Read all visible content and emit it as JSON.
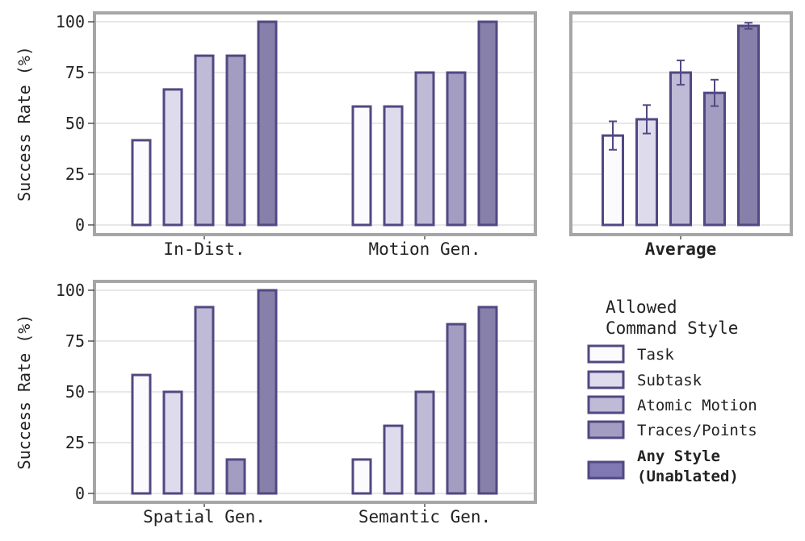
{
  "palette": {
    "stroke": "#524882",
    "fills": [
      "#fbfbfd",
      "#dedcec",
      "#bfbad6",
      "#a39dc1",
      "#8680aa"
    ],
    "legend_unablated_fill": "#7f78b2",
    "frame": "#a6a6a6",
    "grid": "#d2d2d2"
  },
  "chart_data": [
    {
      "type": "bar",
      "ylabel": "Success Rate (%)",
      "ylim": [
        0,
        100
      ],
      "yticks": [
        0,
        25,
        50,
        75,
        100
      ],
      "categories": [
        "In-Dist.",
        "Motion Gen."
      ],
      "series": [
        {
          "name": "Task",
          "values": [
            41.7,
            58.3
          ]
        },
        {
          "name": "Subtask",
          "values": [
            66.7,
            58.3
          ]
        },
        {
          "name": "Atomic Motion",
          "values": [
            83.3,
            75
          ]
        },
        {
          "name": "Traces/Points",
          "values": [
            83.3,
            75
          ]
        },
        {
          "name": "Any Style (Unablated)",
          "values": [
            100,
            100
          ]
        }
      ]
    },
    {
      "type": "bar",
      "ylim": [
        0,
        100
      ],
      "categories": [
        "Average"
      ],
      "series": [
        {
          "name": "Task",
          "values": [
            44
          ],
          "error": [
            7
          ]
        },
        {
          "name": "Subtask",
          "values": [
            52
          ],
          "error": [
            7
          ]
        },
        {
          "name": "Atomic Motion",
          "values": [
            75
          ],
          "error": [
            6
          ]
        },
        {
          "name": "Traces/Points",
          "values": [
            65
          ],
          "error": [
            6.5
          ]
        },
        {
          "name": "Any Style (Unablated)",
          "values": [
            98
          ],
          "error": [
            1.5
          ]
        }
      ]
    },
    {
      "type": "bar",
      "ylabel": "Success Rate (%)",
      "ylim": [
        0,
        100
      ],
      "yticks": [
        0,
        25,
        50,
        75,
        100
      ],
      "categories": [
        "Spatial Gen.",
        "Semantic Gen."
      ],
      "series": [
        {
          "name": "Task",
          "values": [
            58.3,
            16.7
          ]
        },
        {
          "name": "Subtask",
          "values": [
            50,
            33.3
          ]
        },
        {
          "name": "Atomic Motion",
          "values": [
            91.7,
            50
          ]
        },
        {
          "name": "Traces/Points",
          "values": [
            16.7,
            83.3
          ]
        },
        {
          "name": "Any Style (Unablated)",
          "values": [
            100,
            91.7
          ]
        }
      ]
    }
  ],
  "legend": {
    "title_line1": "Allowed",
    "title_line2": "Command Style",
    "items": [
      {
        "label": "Task"
      },
      {
        "label": "Subtask"
      },
      {
        "label": "Atomic Motion"
      },
      {
        "label": "Traces/Points"
      },
      {
        "label_line1": "Any Style",
        "label_line2": "(Unablated)"
      }
    ]
  }
}
